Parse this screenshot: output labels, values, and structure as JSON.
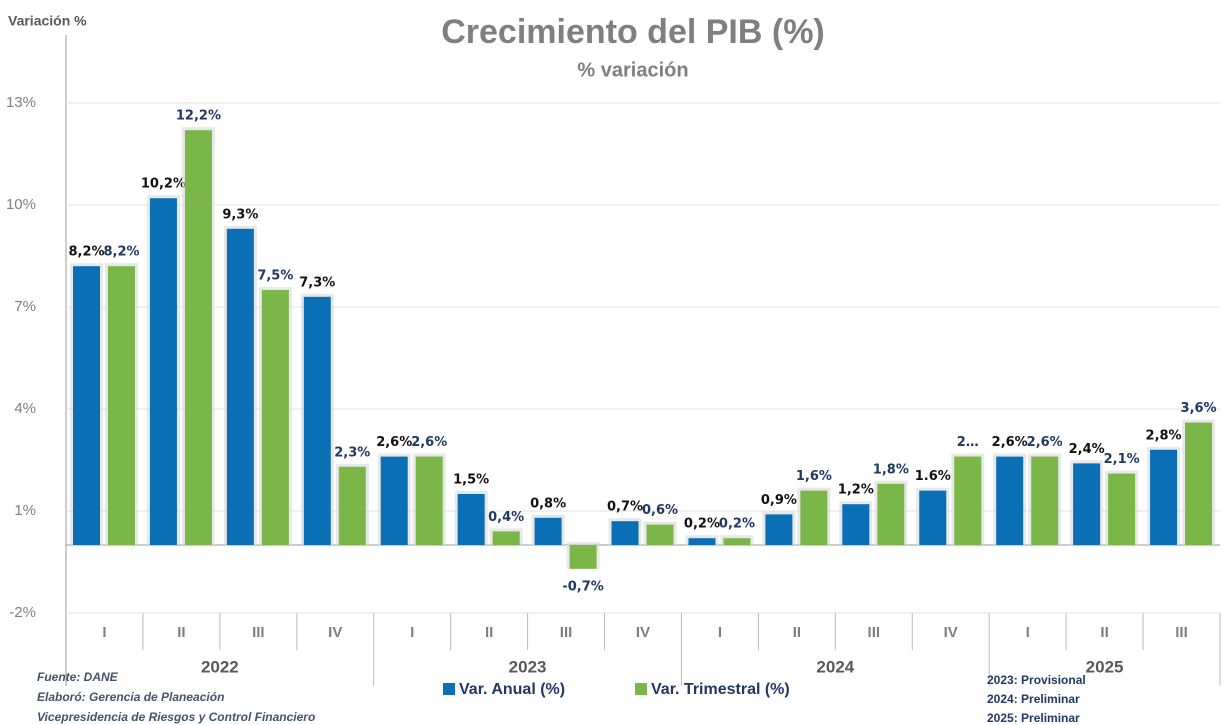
{
  "chart_data": {
    "type": "bar",
    "title": "Crecimiento del PIB (%)",
    "subtitle": "% variación",
    "y_axis_label": "Variación %",
    "categories": [
      "I",
      "II",
      "III",
      "IV",
      "I",
      "II",
      "III",
      "IV",
      "I",
      "II",
      "III",
      "IV",
      "I",
      "II",
      "III"
    ],
    "groups": [
      "2022",
      "2023",
      "2024",
      "2025"
    ],
    "series": [
      {
        "name": "Var. Anual (%)",
        "color": "#0b6fb5",
        "label_color": "#111111",
        "values": [
          8.2,
          10.2,
          9.3,
          7.3,
          2.6,
          1.5,
          0.8,
          0.7,
          0.2,
          0.9,
          1.2,
          1.6,
          2.6,
          2.4,
          2.8
        ],
        "value_labels": [
          "8,2%",
          "10,2%",
          "9,3%",
          "7,3%",
          "2,6%",
          "1,5%",
          "0,8%",
          "0,7%",
          "0,2%",
          "0,9%",
          "1,2%",
          "1.6%",
          "2,6%",
          "2,4%",
          "2,8%"
        ]
      },
      {
        "name": "Var. Trimestral (%)",
        "color": "#7ab648",
        "label_color": "#1f3864",
        "values": [
          8.2,
          12.2,
          7.5,
          2.3,
          2.6,
          0.4,
          -0.7,
          0.6,
          0.2,
          1.6,
          1.8,
          2.6,
          2.6,
          2.1,
          3.6
        ],
        "value_labels": [
          "8,2%",
          "12,2%",
          "7,5%",
          "2,3%",
          "2,6%",
          "0,4%",
          "-0,7%",
          "0,6%",
          "0,2%",
          "1,6%",
          "1,8%",
          "2…",
          "2,6%",
          "2,1%",
          "3,6%"
        ]
      }
    ],
    "ylim": [
      -2,
      13
    ],
    "yticks": [
      {
        "value": -2,
        "label": "-2%"
      },
      {
        "value": 1,
        "label": "1%"
      },
      {
        "value": 4,
        "label": "4%"
      },
      {
        "value": 7,
        "label": "7%"
      },
      {
        "value": 10,
        "label": "10%"
      },
      {
        "value": 13,
        "label": "13%"
      }
    ],
    "grid": true,
    "legend": "bottom",
    "notes": [
      "Fuente:   DANE",
      "Elaboró: Gerencia de Planeación",
      "Vicepresidencia de Riesgos y Control Financiero"
    ],
    "status_notes": [
      "2023: Provisional",
      "2024: Preliminar",
      "2025: Preliminar"
    ]
  }
}
